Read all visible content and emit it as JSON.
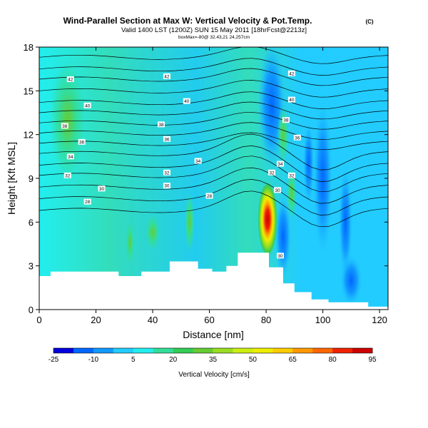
{
  "header": {
    "title": "Wind-Parallel Section at Max W: Vertical Velocity & Pot.Temp.",
    "copyright": "(C)",
    "valid": "Valid 1400 LST (1200Z) SUN 15 May 2011 [18hrFcst@2213z]",
    "location": "boxMax=-80@ 32.43,21 24,257cm"
  },
  "chart_data": {
    "type": "heatmap",
    "title": "Wind-Parallel Section at Max W: Vertical Velocity & Pot.Temp.",
    "xlabel": "Distance [nm]",
    "ylabel": "Height [Kft MSL]",
    "xlim": [
      0,
      123
    ],
    "ylim": [
      0,
      18
    ],
    "x_ticks": [
      "0",
      "20",
      "40",
      "60",
      "80",
      "100",
      "120"
    ],
    "x_tick_values": [
      0,
      20,
      40,
      60,
      80,
      100,
      120
    ],
    "y_ticks": [
      "0",
      "3",
      "6",
      "9",
      "12",
      "15",
      "18"
    ],
    "y_tick_values": [
      0,
      3,
      6,
      9,
      12,
      15,
      18
    ],
    "colorbar": {
      "label": "Vertical Velocity [cm/s]",
      "tick_labels": [
        "-25",
        "-10",
        "5",
        "20",
        "35",
        "50",
        "65",
        "80",
        "95"
      ],
      "bin_edges": [
        -25,
        -17.5,
        -10,
        -2.5,
        5,
        12.5,
        20,
        27.5,
        35,
        42.5,
        50,
        57.5,
        65,
        72.5,
        80,
        87.5,
        95
      ],
      "colors": [
        "#0000dd",
        "#0066ff",
        "#1199ff",
        "#22ccff",
        "#22eeee",
        "#33dd99",
        "#33cc55",
        "#66cc33",
        "#99dd22",
        "#ccee11",
        "#eeee00",
        "#ffcc00",
        "#ff9900",
        "#ff6600",
        "#ee2200",
        "#cc0000"
      ]
    },
    "terrain_kft": [
      [
        0,
        2.3
      ],
      [
        4,
        2.3
      ],
      [
        4,
        2.6
      ],
      [
        28,
        2.6
      ],
      [
        28,
        2.3
      ],
      [
        36,
        2.3
      ],
      [
        36,
        2.6
      ],
      [
        46,
        2.6
      ],
      [
        46,
        3.3
      ],
      [
        56,
        3.3
      ],
      [
        56,
        2.8
      ],
      [
        61,
        2.8
      ],
      [
        61,
        2.6
      ],
      [
        66,
        2.6
      ],
      [
        66,
        3.0
      ],
      [
        70,
        3.0
      ],
      [
        70,
        3.9
      ],
      [
        81,
        3.9
      ],
      [
        81,
        2.9
      ],
      [
        86,
        2.9
      ],
      [
        86,
        1.8
      ],
      [
        90,
        1.8
      ],
      [
        90,
        1.2
      ],
      [
        96,
        1.2
      ],
      [
        96,
        0.7
      ],
      [
        102,
        0.7
      ],
      [
        102,
        0.5
      ],
      [
        116,
        0.5
      ],
      [
        116,
        0.2
      ],
      [
        123,
        0.2
      ]
    ],
    "isentrope_labels": [
      {
        "text": "28",
        "x": 17,
        "y": 7.4
      },
      {
        "text": "30",
        "x": 22,
        "y": 8.3
      },
      {
        "text": "32",
        "x": 10,
        "y": 9.2
      },
      {
        "text": "34",
        "x": 11,
        "y": 10.5
      },
      {
        "text": "36",
        "x": 15,
        "y": 11.5
      },
      {
        "text": "38",
        "x": 9,
        "y": 12.6
      },
      {
        "text": "40",
        "x": 17,
        "y": 14.0
      },
      {
        "text": "42",
        "x": 11,
        "y": 15.8
      },
      {
        "text": "30",
        "x": 45,
        "y": 8.5
      },
      {
        "text": "32",
        "x": 45,
        "y": 9.4
      },
      {
        "text": "34",
        "x": 56,
        "y": 10.2
      },
      {
        "text": "36",
        "x": 45,
        "y": 11.7
      },
      {
        "text": "38",
        "x": 43,
        "y": 12.7
      },
      {
        "text": "40",
        "x": 52,
        "y": 14.3
      },
      {
        "text": "42",
        "x": 45,
        "y": 16.0
      },
      {
        "text": "28",
        "x": 60,
        "y": 7.8
      },
      {
        "text": "32",
        "x": 82,
        "y": 9.4
      },
      {
        "text": "34",
        "x": 85,
        "y": 10.0
      },
      {
        "text": "30",
        "x": 84,
        "y": 8.2
      },
      {
        "text": "32",
        "x": 89,
        "y": 9.2
      },
      {
        "text": "36",
        "x": 91,
        "y": 11.8
      },
      {
        "text": "38",
        "x": 87,
        "y": 13.0
      },
      {
        "text": "40",
        "x": 89,
        "y": 14.4
      },
      {
        "text": "42",
        "x": 89,
        "y": 16.2
      },
      {
        "text": "30",
        "x": 85,
        "y": 3.7
      }
    ]
  }
}
